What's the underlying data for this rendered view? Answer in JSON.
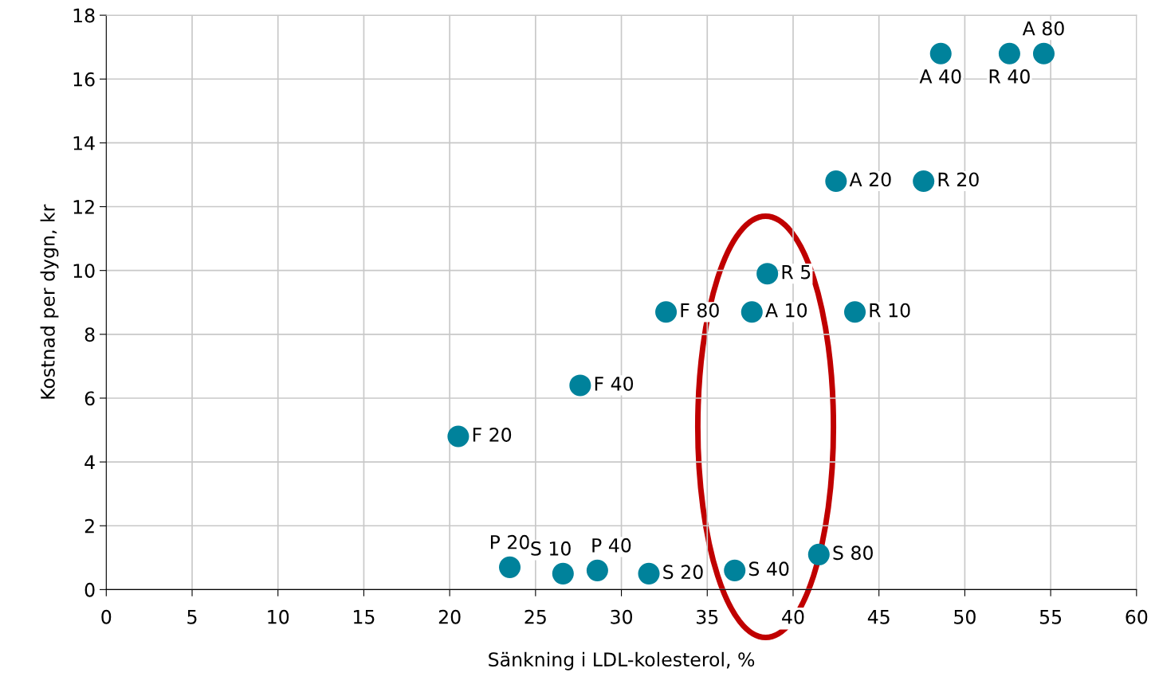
{
  "chart_data": {
    "type": "scatter",
    "xlabel": "Sänkning i LDL-kolesterol, %",
    "ylabel": "Kostnad per dygn, kr",
    "x": [
      48.6,
      52.6,
      54.6,
      42.5,
      47.6,
      38.5,
      32.6,
      37.6,
      43.6,
      27.6,
      20.5,
      23.5,
      26.6,
      28.6,
      31.6,
      36.6,
      41.5
    ],
    "series": [
      {
        "color": "#00829b",
        "values": [
          16.8,
          16.8,
          16.8,
          12.8,
          12.8,
          9.9,
          8.7,
          8.7,
          8.7,
          6.4,
          4.8,
          0.7,
          0.5,
          0.6,
          0.5,
          0.6,
          1.1
        ],
        "value_labels": [
          "A 40",
          "R 40",
          "A 80",
          "A 20",
          "R 20",
          "R 5",
          "F 80",
          "A 10",
          "R 10",
          "F 40",
          "F 20",
          "P 20",
          "S 10",
          "P 40",
          "S 20",
          "S 40",
          "S 80"
        ]
      }
    ],
    "xlim": [
      0,
      60
    ],
    "xticks": [
      0,
      5,
      10,
      15,
      20,
      25,
      30,
      35,
      40,
      45,
      50,
      55,
      60
    ],
    "ylim": [
      0,
      18
    ],
    "yticks": [
      0,
      2,
      4,
      6,
      8,
      10,
      12,
      14,
      16,
      18
    ],
    "grid": true,
    "marker": "circle"
  }
}
